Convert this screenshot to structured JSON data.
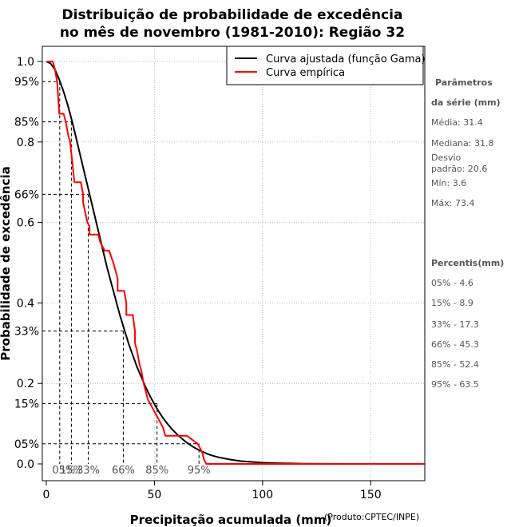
{
  "chart_data": {
    "type": "line",
    "title_line1": "Distribuição de probabilidade de excedência",
    "title_line2": "no mês de novembro (1981-2010): Região 32",
    "xlabel": "Precipitação acumulada (mm)",
    "ylabel": "Probabilidade de excedência",
    "credit": "(Produto:CPTEC/INPE)",
    "xlim": [
      0,
      175
    ],
    "ylim": [
      0,
      1
    ],
    "x_ticks": [
      0,
      50,
      100,
      150
    ],
    "y_ticks": [
      0.0,
      0.2,
      0.4,
      0.6,
      0.8,
      1.0
    ],
    "y_tick_labels": [
      "0.0",
      "0.2",
      "0.4",
      "0.6",
      "0.8",
      "1.0"
    ],
    "x_gridlines": [
      50,
      100,
      150
    ],
    "y_gridlines": [
      0.2,
      0.4,
      0.6,
      0.8,
      1.0
    ],
    "legend": {
      "position": "top-right",
      "entries": [
        {
          "label": "Curva ajustada (função Gama)",
          "color": "#000000"
        },
        {
          "label": "Curva empírica",
          "color": "#ff0000"
        }
      ]
    },
    "series": [
      {
        "name": "Curva ajustada (função Gama)",
        "color": "#000000",
        "x": [
          0,
          2,
          4,
          6,
          8,
          10,
          12,
          14,
          16,
          18,
          20,
          22,
          24,
          26,
          28,
          30,
          32,
          34,
          36,
          38,
          40,
          42,
          44,
          46,
          48,
          50,
          52,
          54,
          56,
          58,
          60,
          62,
          64,
          66,
          68,
          70,
          72,
          74,
          76,
          78,
          80,
          85,
          90,
          95,
          100,
          105,
          110,
          115,
          120,
          130,
          140,
          146
        ],
        "values": [
          1.0,
          0.995,
          0.98,
          0.955,
          0.925,
          0.89,
          0.85,
          0.805,
          0.76,
          0.715,
          0.67,
          0.625,
          0.58,
          0.535,
          0.49,
          0.45,
          0.41,
          0.37,
          0.335,
          0.3,
          0.27,
          0.24,
          0.215,
          0.19,
          0.168,
          0.148,
          0.13,
          0.114,
          0.1,
          0.087,
          0.076,
          0.066,
          0.057,
          0.049,
          0.042,
          0.036,
          0.031,
          0.026,
          0.022,
          0.019,
          0.016,
          0.011,
          0.007,
          0.005,
          0.003,
          0.002,
          0.0015,
          0.001,
          0.0005,
          0.0002,
          0.0001,
          0.0
        ]
      },
      {
        "name": "Curva empírica",
        "color": "#ff0000",
        "x": [
          0,
          3,
          4,
          5,
          6,
          8,
          9,
          10,
          11,
          12,
          13,
          13,
          16,
          17,
          17,
          19,
          20,
          20,
          22,
          24,
          25,
          25,
          27,
          28,
          29,
          29,
          31,
          32,
          33,
          33,
          35,
          36,
          37,
          37,
          39,
          40,
          41,
          41,
          42,
          43,
          44,
          45,
          46,
          47,
          48,
          49,
          50,
          52,
          54,
          55,
          56,
          57,
          58,
          59,
          60,
          60,
          65,
          70,
          71,
          72,
          73,
          74,
          176
        ],
        "values": [
          1.0,
          1.0,
          0.98,
          0.95,
          0.87,
          0.87,
          0.85,
          0.82,
          0.8,
          0.75,
          0.7,
          0.7,
          0.7,
          0.67,
          0.65,
          0.6,
          0.59,
          0.57,
          0.57,
          0.57,
          0.55,
          0.55,
          0.53,
          0.53,
          0.53,
          0.53,
          0.5,
          0.48,
          0.46,
          0.43,
          0.43,
          0.43,
          0.4,
          0.37,
          0.37,
          0.37,
          0.33,
          0.3,
          0.28,
          0.25,
          0.23,
          0.2,
          0.18,
          0.16,
          0.15,
          0.14,
          0.13,
          0.11,
          0.09,
          0.07,
          0.07,
          0.07,
          0.07,
          0.07,
          0.07,
          0.07,
          0.07,
          0.05,
          0.04,
          0.03,
          0.01,
          0.0,
          0.0
        ]
      }
    ],
    "percentile_markers": [
      {
        "label": "05%",
        "p": 0.95,
        "x": 6.2
      },
      {
        "label": "15%",
        "p": 0.85,
        "x": 11.6
      },
      {
        "label": "33%",
        "p": 0.67,
        "x": 19.4
      },
      {
        "label": "66%",
        "p": 0.33,
        "x": 35.6
      },
      {
        "label": "85%",
        "p": 0.15,
        "x": 51.2
      },
      {
        "label": "95%",
        "p": 0.05,
        "x": 70.6
      }
    ],
    "left_percent_labels": [
      {
        "label": "95%",
        "p": 0.95
      },
      {
        "label": "85%",
        "p": 0.85
      },
      {
        "label": "66%",
        "p": 0.67
      },
      {
        "label": "33%",
        "p": 0.33
      },
      {
        "label": "15%",
        "p": 0.15
      },
      {
        "label": "05%",
        "p": 0.05
      }
    ],
    "bottom_percent_labels": [
      "05%",
      "15%",
      "33%",
      "66%",
      "85%",
      "95%"
    ]
  },
  "side_panel": {
    "params_head_1": "Parâmetros",
    "params_head_2": "da série (mm)",
    "media": "Média: 31.4",
    "mediana": "Mediana: 31.8",
    "desvio_1": "Desvio",
    "desvio_2": "padrão: 20.6",
    "min": "Mín: 3.6",
    "max": "Máx: 73.4",
    "percentis_head": "Percentis(mm)",
    "p05": "05% - 4.6",
    "p15": "15% - 8.9",
    "p33": "33% - 17.3",
    "p66": "66% - 45.3",
    "p85": "85% - 52.4",
    "p95": "95% - 63.5"
  }
}
